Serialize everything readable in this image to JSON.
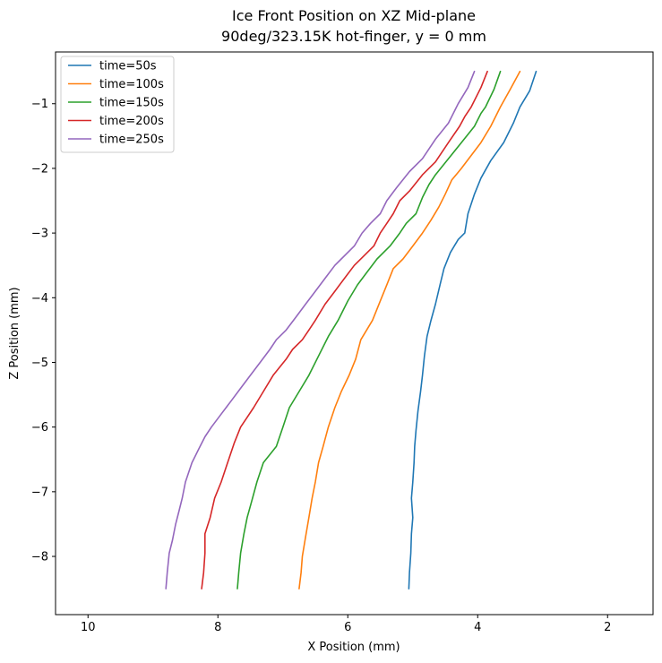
{
  "chart_data": {
    "type": "line",
    "title": "Ice Front Position on XZ Mid-plane",
    "subtitle": "90deg/323.15K hot-finger, y = 0 mm",
    "xlabel": "X Position (mm)",
    "ylabel": "Z Position (mm)",
    "xlim": [
      10.5,
      1.3
    ],
    "ylim": [
      -8.9,
      -0.2
    ],
    "x_inverted": true,
    "xticks": [
      10,
      8,
      6,
      4,
      2
    ],
    "xtick_labels": [
      "10",
      "8",
      "6",
      "4",
      "2"
    ],
    "yticks": [
      -1,
      -2,
      -3,
      -4,
      -5,
      -6,
      -7,
      -8
    ],
    "ytick_labels": [
      "−1",
      "−2",
      "−3",
      "−4",
      "−5",
      "−6",
      "−7",
      "−8"
    ],
    "grid": false,
    "legend_position": "top-left",
    "series": [
      {
        "name": "time=50s",
        "color": "#1f77b4",
        "points": [
          [
            3.1,
            -0.5
          ],
          [
            3.2,
            -0.8
          ],
          [
            3.35,
            -1.05
          ],
          [
            3.45,
            -1.3
          ],
          [
            3.6,
            -1.6
          ],
          [
            3.8,
            -1.88
          ],
          [
            3.95,
            -2.15
          ],
          [
            4.05,
            -2.4
          ],
          [
            4.15,
            -2.7
          ],
          [
            4.2,
            -3.0
          ],
          [
            4.3,
            -3.1
          ],
          [
            4.42,
            -3.3
          ],
          [
            4.52,
            -3.55
          ],
          [
            4.58,
            -3.8
          ],
          [
            4.65,
            -4.1
          ],
          [
            4.72,
            -4.35
          ],
          [
            4.78,
            -4.6
          ],
          [
            4.82,
            -4.9
          ],
          [
            4.85,
            -5.2
          ],
          [
            4.88,
            -5.45
          ],
          [
            4.92,
            -5.75
          ],
          [
            4.95,
            -6.05
          ],
          [
            4.97,
            -6.3
          ],
          [
            4.98,
            -6.55
          ],
          [
            5.0,
            -6.85
          ],
          [
            5.02,
            -7.1
          ],
          [
            5.0,
            -7.4
          ],
          [
            5.02,
            -7.65
          ],
          [
            5.03,
            -7.95
          ],
          [
            5.05,
            -8.25
          ],
          [
            5.06,
            -8.5
          ]
        ]
      },
      {
        "name": "time=100s",
        "color": "#ff7f0e",
        "points": [
          [
            3.35,
            -0.5
          ],
          [
            3.5,
            -0.78
          ],
          [
            3.65,
            -1.05
          ],
          [
            3.8,
            -1.35
          ],
          [
            3.95,
            -1.6
          ],
          [
            4.1,
            -1.8
          ],
          [
            4.25,
            -2.0
          ],
          [
            4.4,
            -2.18
          ],
          [
            4.5,
            -2.4
          ],
          [
            4.6,
            -2.6
          ],
          [
            4.72,
            -2.8
          ],
          [
            4.85,
            -3.0
          ],
          [
            5.0,
            -3.2
          ],
          [
            5.15,
            -3.4
          ],
          [
            5.3,
            -3.55
          ],
          [
            5.4,
            -3.8
          ],
          [
            5.5,
            -4.05
          ],
          [
            5.62,
            -4.35
          ],
          [
            5.8,
            -4.65
          ],
          [
            5.88,
            -4.95
          ],
          [
            5.98,
            -5.2
          ],
          [
            6.1,
            -5.45
          ],
          [
            6.2,
            -5.7
          ],
          [
            6.3,
            -6.0
          ],
          [
            6.38,
            -6.3
          ],
          [
            6.45,
            -6.55
          ],
          [
            6.5,
            -6.85
          ],
          [
            6.55,
            -7.1
          ],
          [
            6.6,
            -7.4
          ],
          [
            6.65,
            -7.7
          ],
          [
            6.7,
            -8.0
          ],
          [
            6.72,
            -8.25
          ],
          [
            6.75,
            -8.5
          ]
        ]
      },
      {
        "name": "time=150s",
        "color": "#2ca02c",
        "points": [
          [
            3.65,
            -0.5
          ],
          [
            3.75,
            -0.78
          ],
          [
            3.88,
            -1.05
          ],
          [
            3.95,
            -1.15
          ],
          [
            4.05,
            -1.35
          ],
          [
            4.25,
            -1.6
          ],
          [
            4.45,
            -1.85
          ],
          [
            4.65,
            -2.1
          ],
          [
            4.75,
            -2.25
          ],
          [
            4.85,
            -2.45
          ],
          [
            4.95,
            -2.7
          ],
          [
            5.1,
            -2.85
          ],
          [
            5.2,
            -3.0
          ],
          [
            5.35,
            -3.2
          ],
          [
            5.55,
            -3.4
          ],
          [
            5.7,
            -3.6
          ],
          [
            5.85,
            -3.8
          ],
          [
            6.0,
            -4.05
          ],
          [
            6.15,
            -4.35
          ],
          [
            6.3,
            -4.6
          ],
          [
            6.45,
            -4.9
          ],
          [
            6.6,
            -5.2
          ],
          [
            6.75,
            -5.45
          ],
          [
            6.9,
            -5.7
          ],
          [
            7.0,
            -6.0
          ],
          [
            7.1,
            -6.3
          ],
          [
            7.3,
            -6.55
          ],
          [
            7.4,
            -6.85
          ],
          [
            7.48,
            -7.15
          ],
          [
            7.55,
            -7.4
          ],
          [
            7.6,
            -7.65
          ],
          [
            7.65,
            -7.95
          ],
          [
            7.68,
            -8.25
          ],
          [
            7.7,
            -8.5
          ]
        ]
      },
      {
        "name": "time=200s",
        "color": "#d62728",
        "points": [
          [
            3.85,
            -0.5
          ],
          [
            3.95,
            -0.75
          ],
          [
            4.1,
            -1.05
          ],
          [
            4.2,
            -1.2
          ],
          [
            4.28,
            -1.35
          ],
          [
            4.45,
            -1.6
          ],
          [
            4.65,
            -1.9
          ],
          [
            4.85,
            -2.1
          ],
          [
            5.05,
            -2.35
          ],
          [
            5.2,
            -2.5
          ],
          [
            5.3,
            -2.7
          ],
          [
            5.4,
            -2.85
          ],
          [
            5.5,
            -3.0
          ],
          [
            5.6,
            -3.2
          ],
          [
            5.75,
            -3.35
          ],
          [
            5.9,
            -3.5
          ],
          [
            6.05,
            -3.7
          ],
          [
            6.2,
            -3.9
          ],
          [
            6.35,
            -4.1
          ],
          [
            6.5,
            -4.35
          ],
          [
            6.6,
            -4.5
          ],
          [
            6.7,
            -4.65
          ],
          [
            6.85,
            -4.8
          ],
          [
            6.95,
            -4.95
          ],
          [
            7.15,
            -5.2
          ],
          [
            7.3,
            -5.45
          ],
          [
            7.45,
            -5.7
          ],
          [
            7.55,
            -5.85
          ],
          [
            7.65,
            -6.0
          ],
          [
            7.75,
            -6.25
          ],
          [
            7.85,
            -6.55
          ],
          [
            7.95,
            -6.85
          ],
          [
            8.05,
            -7.1
          ],
          [
            8.12,
            -7.4
          ],
          [
            8.2,
            -7.65
          ],
          [
            8.2,
            -7.95
          ],
          [
            8.22,
            -8.25
          ],
          [
            8.25,
            -8.5
          ]
        ]
      },
      {
        "name": "time=250s",
        "color": "#9467bd",
        "points": [
          [
            4.05,
            -0.5
          ],
          [
            4.15,
            -0.75
          ],
          [
            4.3,
            -1.0
          ],
          [
            4.45,
            -1.3
          ],
          [
            4.65,
            -1.55
          ],
          [
            4.85,
            -1.85
          ],
          [
            5.05,
            -2.05
          ],
          [
            5.25,
            -2.3
          ],
          [
            5.4,
            -2.5
          ],
          [
            5.5,
            -2.7
          ],
          [
            5.65,
            -2.85
          ],
          [
            5.78,
            -3.0
          ],
          [
            5.9,
            -3.2
          ],
          [
            6.1,
            -3.4
          ],
          [
            6.2,
            -3.5
          ],
          [
            6.35,
            -3.7
          ],
          [
            6.5,
            -3.9
          ],
          [
            6.65,
            -4.1
          ],
          [
            6.8,
            -4.3
          ],
          [
            6.95,
            -4.5
          ],
          [
            7.1,
            -4.65
          ],
          [
            7.2,
            -4.8
          ],
          [
            7.35,
            -5.0
          ],
          [
            7.5,
            -5.2
          ],
          [
            7.65,
            -5.4
          ],
          [
            7.8,
            -5.6
          ],
          [
            7.95,
            -5.8
          ],
          [
            8.1,
            -6.0
          ],
          [
            8.2,
            -6.15
          ],
          [
            8.3,
            -6.35
          ],
          [
            8.4,
            -6.55
          ],
          [
            8.5,
            -6.85
          ],
          [
            8.55,
            -7.1
          ],
          [
            8.6,
            -7.3
          ],
          [
            8.65,
            -7.5
          ],
          [
            8.7,
            -7.75
          ],
          [
            8.75,
            -7.95
          ],
          [
            8.78,
            -8.25
          ],
          [
            8.8,
            -8.5
          ]
        ]
      }
    ]
  }
}
